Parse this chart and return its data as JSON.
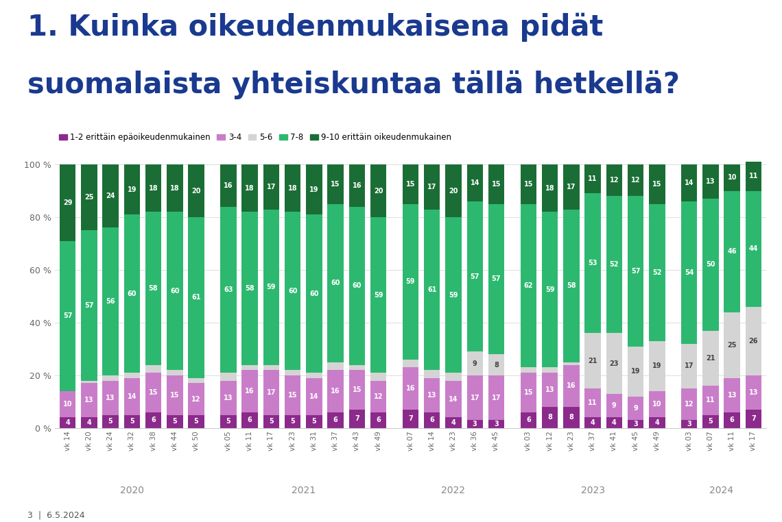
{
  "title_line1": "1. Kuinka oikeudenmukaisena pidät",
  "title_line2": "suomalaista yhteiskuntaa tällä hetkellä?",
  "title_color": "#1a3a8f",
  "background_color": "#ffffff",
  "footer": "3  |  6.5.2024",
  "legend_labels": [
    "1-2 erittäin epäoikeudenmukainen",
    "3-4",
    "5-6",
    "7-8",
    "9-10 erittäin oikeudenmukainen"
  ],
  "colors": [
    "#8B2A8B",
    "#C97DC9",
    "#d4d4d4",
    "#2db870",
    "#1a6e35"
  ],
  "categories": [
    "vk 14",
    "vk 20",
    "vk 24",
    "vk 32",
    "vk 38",
    "vk 44",
    "vk 50",
    "vk 05",
    "vk 11",
    "vk 17",
    "vk 23",
    "vk 31",
    "vk 37",
    "vk 43",
    "vk 49",
    "vk 07",
    "vk 14",
    "vk 23",
    "vk 36",
    "vk 45",
    "vk 03",
    "vk 12",
    "vk 23",
    "vk 37",
    "vk 41",
    "vk 45",
    "vk 49",
    "vk 03",
    "vk 07",
    "vk 11",
    "vk 17"
  ],
  "year_groups": [
    {
      "label": "2020",
      "start": 0,
      "end": 6
    },
    {
      "label": "2021",
      "start": 7,
      "end": 14
    },
    {
      "label": "2022",
      "start": 15,
      "end": 19
    },
    {
      "label": "2023",
      "start": 20,
      "end": 26
    },
    {
      "label": "2024",
      "start": 27,
      "end": 30
    }
  ],
  "gaps_after": [
    6,
    14,
    19,
    26
  ],
  "data": {
    "s1": [
      4,
      4,
      5,
      5,
      6,
      5,
      5,
      5,
      6,
      5,
      5,
      5,
      6,
      7,
      6,
      7,
      6,
      4,
      3,
      3,
      6,
      8,
      8,
      4,
      4,
      3,
      4,
      3,
      5,
      6,
      7
    ],
    "s2": [
      10,
      13,
      13,
      14,
      15,
      15,
      12,
      13,
      16,
      17,
      15,
      14,
      16,
      15,
      12,
      16,
      13,
      14,
      17,
      17,
      15,
      13,
      16,
      11,
      9,
      9,
      10,
      12,
      11,
      13,
      13
    ],
    "s3": [
      0,
      1,
      2,
      2,
      3,
      2,
      2,
      3,
      2,
      2,
      2,
      2,
      3,
      2,
      3,
      3,
      3,
      3,
      9,
      8,
      2,
      2,
      1,
      21,
      23,
      19,
      19,
      17,
      21,
      25,
      26
    ],
    "s4": [
      57,
      57,
      56,
      60,
      58,
      60,
      61,
      63,
      58,
      59,
      60,
      60,
      60,
      60,
      59,
      59,
      61,
      59,
      57,
      57,
      62,
      59,
      58,
      53,
      52,
      57,
      52,
      54,
      50,
      46,
      44
    ],
    "s5": [
      29,
      25,
      24,
      19,
      18,
      18,
      20,
      16,
      18,
      17,
      18,
      19,
      15,
      16,
      20,
      15,
      17,
      20,
      14,
      15,
      15,
      18,
      17,
      11,
      12,
      12,
      15,
      14,
      13,
      10,
      11
    ]
  },
  "ylim": [
    0,
    100
  ],
  "ylabel_ticks": [
    0,
    20,
    40,
    60,
    80,
    100
  ],
  "ylabel_labels": [
    "0 %",
    "20 %",
    "40 %",
    "60 %",
    "80 %",
    "100 %"
  ]
}
